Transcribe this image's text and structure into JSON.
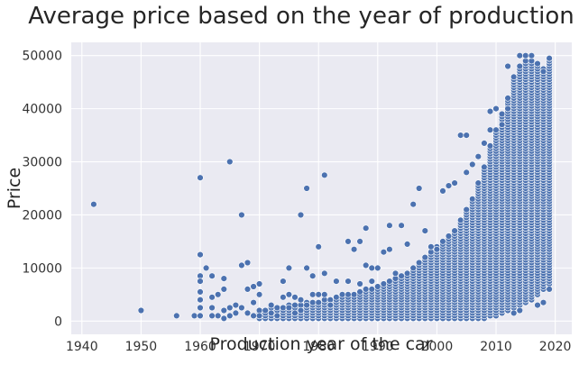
{
  "chart_data": {
    "type": "scatter",
    "title": "Average price based on the year of production",
    "xlabel": "Production year of the car",
    "ylabel": "Price",
    "xlim": [
      1938.2,
      2022.8
    ],
    "ylim": [
      -2500,
      52500
    ],
    "xticks": [
      1940,
      1950,
      1960,
      1970,
      1980,
      1990,
      2000,
      2010,
      2020
    ],
    "yticks": [
      0,
      10000,
      20000,
      30000,
      40000,
      50000
    ],
    "grid": true,
    "colors": {
      "background": "#EAEAF2",
      "grid": "#FFFFFF",
      "marker": "#4C72B0",
      "marker_edge": "#FFFFFF"
    },
    "outlier_points": [
      [
        1942,
        22000
      ],
      [
        1950,
        2000
      ],
      [
        1956,
        1000
      ],
      [
        1959,
        1000
      ],
      [
        1960,
        27000
      ],
      [
        1960,
        12500
      ],
      [
        1960,
        8500
      ],
      [
        1960,
        7500
      ],
      [
        1960,
        5500
      ],
      [
        1960,
        4000
      ],
      [
        1960,
        2500
      ],
      [
        1960,
        1000
      ],
      [
        1961,
        10000
      ],
      [
        1962,
        8500
      ],
      [
        1962,
        4500
      ],
      [
        1962,
        2500
      ],
      [
        1962,
        1000
      ],
      [
        1963,
        5000
      ],
      [
        1963,
        1000
      ],
      [
        1964,
        8000
      ],
      [
        1964,
        6000
      ],
      [
        1964,
        2000
      ],
      [
        1964,
        500
      ],
      [
        1965,
        30000
      ],
      [
        1965,
        2500
      ],
      [
        1965,
        1000
      ],
      [
        1966,
        3000
      ],
      [
        1966,
        1500
      ],
      [
        1967,
        20000
      ],
      [
        1967,
        10500
      ],
      [
        1967,
        2500
      ],
      [
        1968,
        11000
      ],
      [
        1968,
        6000
      ],
      [
        1968,
        1500
      ],
      [
        1969,
        6500
      ],
      [
        1969,
        3500
      ],
      [
        1969,
        1000
      ],
      [
        1970,
        7000
      ],
      [
        1970,
        5000
      ],
      [
        1970,
        1000
      ],
      [
        1972,
        3000
      ],
      [
        1972,
        1500
      ],
      [
        1973,
        1000
      ],
      [
        1974,
        7500
      ],
      [
        1974,
        4500
      ],
      [
        1975,
        10000
      ],
      [
        1975,
        5000
      ],
      [
        1975,
        2500
      ],
      [
        1976,
        4500
      ],
      [
        1976,
        1500
      ],
      [
        1977,
        20000
      ],
      [
        1977,
        4000
      ],
      [
        1977,
        2000
      ],
      [
        1978,
        25000
      ],
      [
        1978,
        10000
      ],
      [
        1978,
        3000
      ],
      [
        1979,
        8500
      ],
      [
        1979,
        5000
      ],
      [
        1980,
        14000
      ],
      [
        1980,
        5000
      ],
      [
        1981,
        27500
      ],
      [
        1981,
        9000
      ],
      [
        1981,
        5000
      ],
      [
        1982,
        3000
      ],
      [
        1983,
        7500
      ],
      [
        1984,
        5000
      ],
      [
        1985,
        15000
      ],
      [
        1985,
        7500
      ],
      [
        1986,
        13500
      ],
      [
        1987,
        15000
      ],
      [
        1987,
        7000
      ],
      [
        1988,
        17500
      ],
      [
        1988,
        10500
      ],
      [
        1989,
        10000
      ],
      [
        1989,
        7500
      ],
      [
        1990,
        10000
      ],
      [
        1991,
        13000
      ],
      [
        1992,
        13500
      ],
      [
        1992,
        18000
      ],
      [
        1993,
        9000
      ],
      [
        1994,
        18000
      ],
      [
        1995,
        14500
      ],
      [
        1996,
        22000
      ],
      [
        1997,
        25000
      ],
      [
        1998,
        17000
      ],
      [
        1999,
        14000
      ],
      [
        2000,
        13500
      ],
      [
        2001,
        24500
      ],
      [
        2002,
        25500
      ],
      [
        2003,
        26000
      ],
      [
        2004,
        35000
      ],
      [
        2005,
        35000
      ],
      [
        2005,
        28000
      ],
      [
        2006,
        29500
      ],
      [
        2007,
        31000
      ],
      [
        2008,
        33500
      ],
      [
        2009,
        39500
      ],
      [
        2009,
        36000
      ],
      [
        2010,
        40000
      ],
      [
        2011,
        37000
      ],
      [
        2012,
        40000
      ],
      [
        2012,
        48000
      ],
      [
        2014,
        50000
      ],
      [
        2015,
        50000
      ],
      [
        2016,
        50000
      ],
      [
        2017,
        48500
      ],
      [
        2018,
        47000
      ],
      [
        2019,
        49500
      ],
      [
        2013,
        1500
      ],
      [
        2014,
        2000
      ],
      [
        2017,
        3000
      ],
      [
        2018,
        3500
      ],
      [
        2019,
        6000
      ]
    ],
    "dense_columns": [
      [
        1970,
        500,
        2000
      ],
      [
        1971,
        500,
        2000
      ],
      [
        1972,
        500,
        2500
      ],
      [
        1973,
        500,
        2500
      ],
      [
        1974,
        500,
        2500
      ],
      [
        1975,
        500,
        3000
      ],
      [
        1976,
        500,
        3000
      ],
      [
        1977,
        500,
        3000
      ],
      [
        1978,
        500,
        3500
      ],
      [
        1979,
        500,
        3500
      ],
      [
        1980,
        500,
        3500
      ],
      [
        1981,
        500,
        4000
      ],
      [
        1982,
        500,
        4000
      ],
      [
        1983,
        500,
        4500
      ],
      [
        1984,
        500,
        4500
      ],
      [
        1985,
        500,
        5000
      ],
      [
        1986,
        500,
        5000
      ],
      [
        1987,
        500,
        5500
      ],
      [
        1988,
        500,
        6000
      ],
      [
        1989,
        500,
        6000
      ],
      [
        1990,
        500,
        6500
      ],
      [
        1991,
        500,
        7000
      ],
      [
        1992,
        500,
        7500
      ],
      [
        1993,
        500,
        8000
      ],
      [
        1994,
        500,
        8500
      ],
      [
        1995,
        500,
        9000
      ],
      [
        1996,
        500,
        10000
      ],
      [
        1997,
        500,
        11000
      ],
      [
        1998,
        500,
        12000
      ],
      [
        1999,
        500,
        13000
      ],
      [
        2000,
        500,
        14000
      ],
      [
        2001,
        500,
        15000
      ],
      [
        2002,
        500,
        16000
      ],
      [
        2003,
        500,
        17000
      ],
      [
        2004,
        500,
        19000
      ],
      [
        2005,
        500,
        21000
      ],
      [
        2006,
        500,
        23000
      ],
      [
        2007,
        500,
        26000
      ],
      [
        2008,
        500,
        29000
      ],
      [
        2009,
        1000,
        33000
      ],
      [
        2010,
        1000,
        36000
      ],
      [
        2011,
        1500,
        39000
      ],
      [
        2012,
        2000,
        42000
      ],
      [
        2013,
        2500,
        46000
      ],
      [
        2014,
        3000,
        48000
      ],
      [
        2015,
        3500,
        49000
      ],
      [
        2016,
        4000,
        49000
      ],
      [
        2017,
        5000,
        48500
      ],
      [
        2018,
        6000,
        47500
      ],
      [
        2019,
        7000,
        49500
      ]
    ],
    "dense_step": 500
  }
}
